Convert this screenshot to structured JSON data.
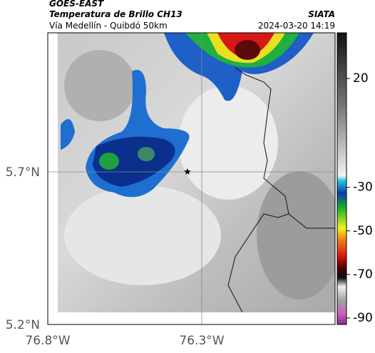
{
  "header": {
    "satellite": "GOES-EAST",
    "product": "Temperatura de Brillo CH13",
    "route": "Vía Medellín - Quibdó 50km",
    "agency": "SIATA",
    "timestamp": "2024-03-20 14:19"
  },
  "axes": {
    "lat_labels": [
      "5.7°N",
      "5.2°N"
    ],
    "lon_labels": [
      "76.8°W",
      "76.3°W"
    ]
  },
  "colorbar": {
    "lim": [
      -93,
      41
    ],
    "ticks": [
      20,
      -30,
      -50,
      -70,
      -90
    ]
  }
}
